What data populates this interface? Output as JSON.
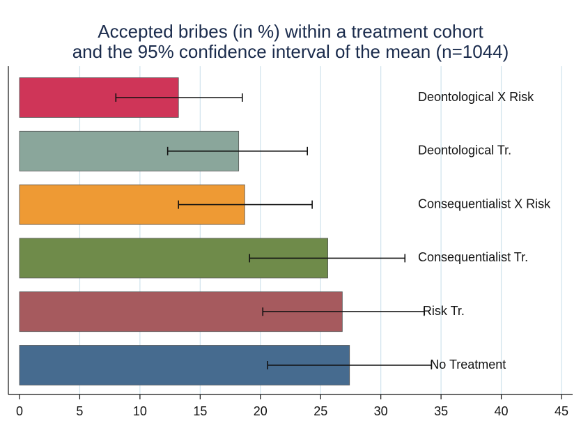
{
  "chart_data": {
    "type": "hbar_error",
    "title": [
      "Accepted bribes (in %) within a treatment cohort",
      "and the 95% confidence interval of the mean (n=1044)"
    ],
    "categories": [
      "Deontological X Risk",
      "Deontological Tr.",
      "Consequentialist X Risk",
      "Consequentialist Tr.",
      "Risk Tr.",
      "No Treatment"
    ],
    "values": [
      13.2,
      18.2,
      18.7,
      25.6,
      26.8,
      27.4
    ],
    "lower": [
      8.0,
      12.3,
      13.2,
      19.1,
      20.2,
      20.6
    ],
    "upper": [
      18.5,
      23.9,
      24.3,
      32.0,
      33.6,
      34.2
    ],
    "colors": [
      "#cf3558",
      "#8aa69b",
      "#ee9a34",
      "#6f8b4a",
      "#a65a5e",
      "#466b8f"
    ],
    "xlim": [
      0,
      45
    ],
    "xticks": [
      0,
      5,
      10,
      15,
      20,
      25,
      30,
      35,
      40,
      45
    ],
    "grid": true
  }
}
